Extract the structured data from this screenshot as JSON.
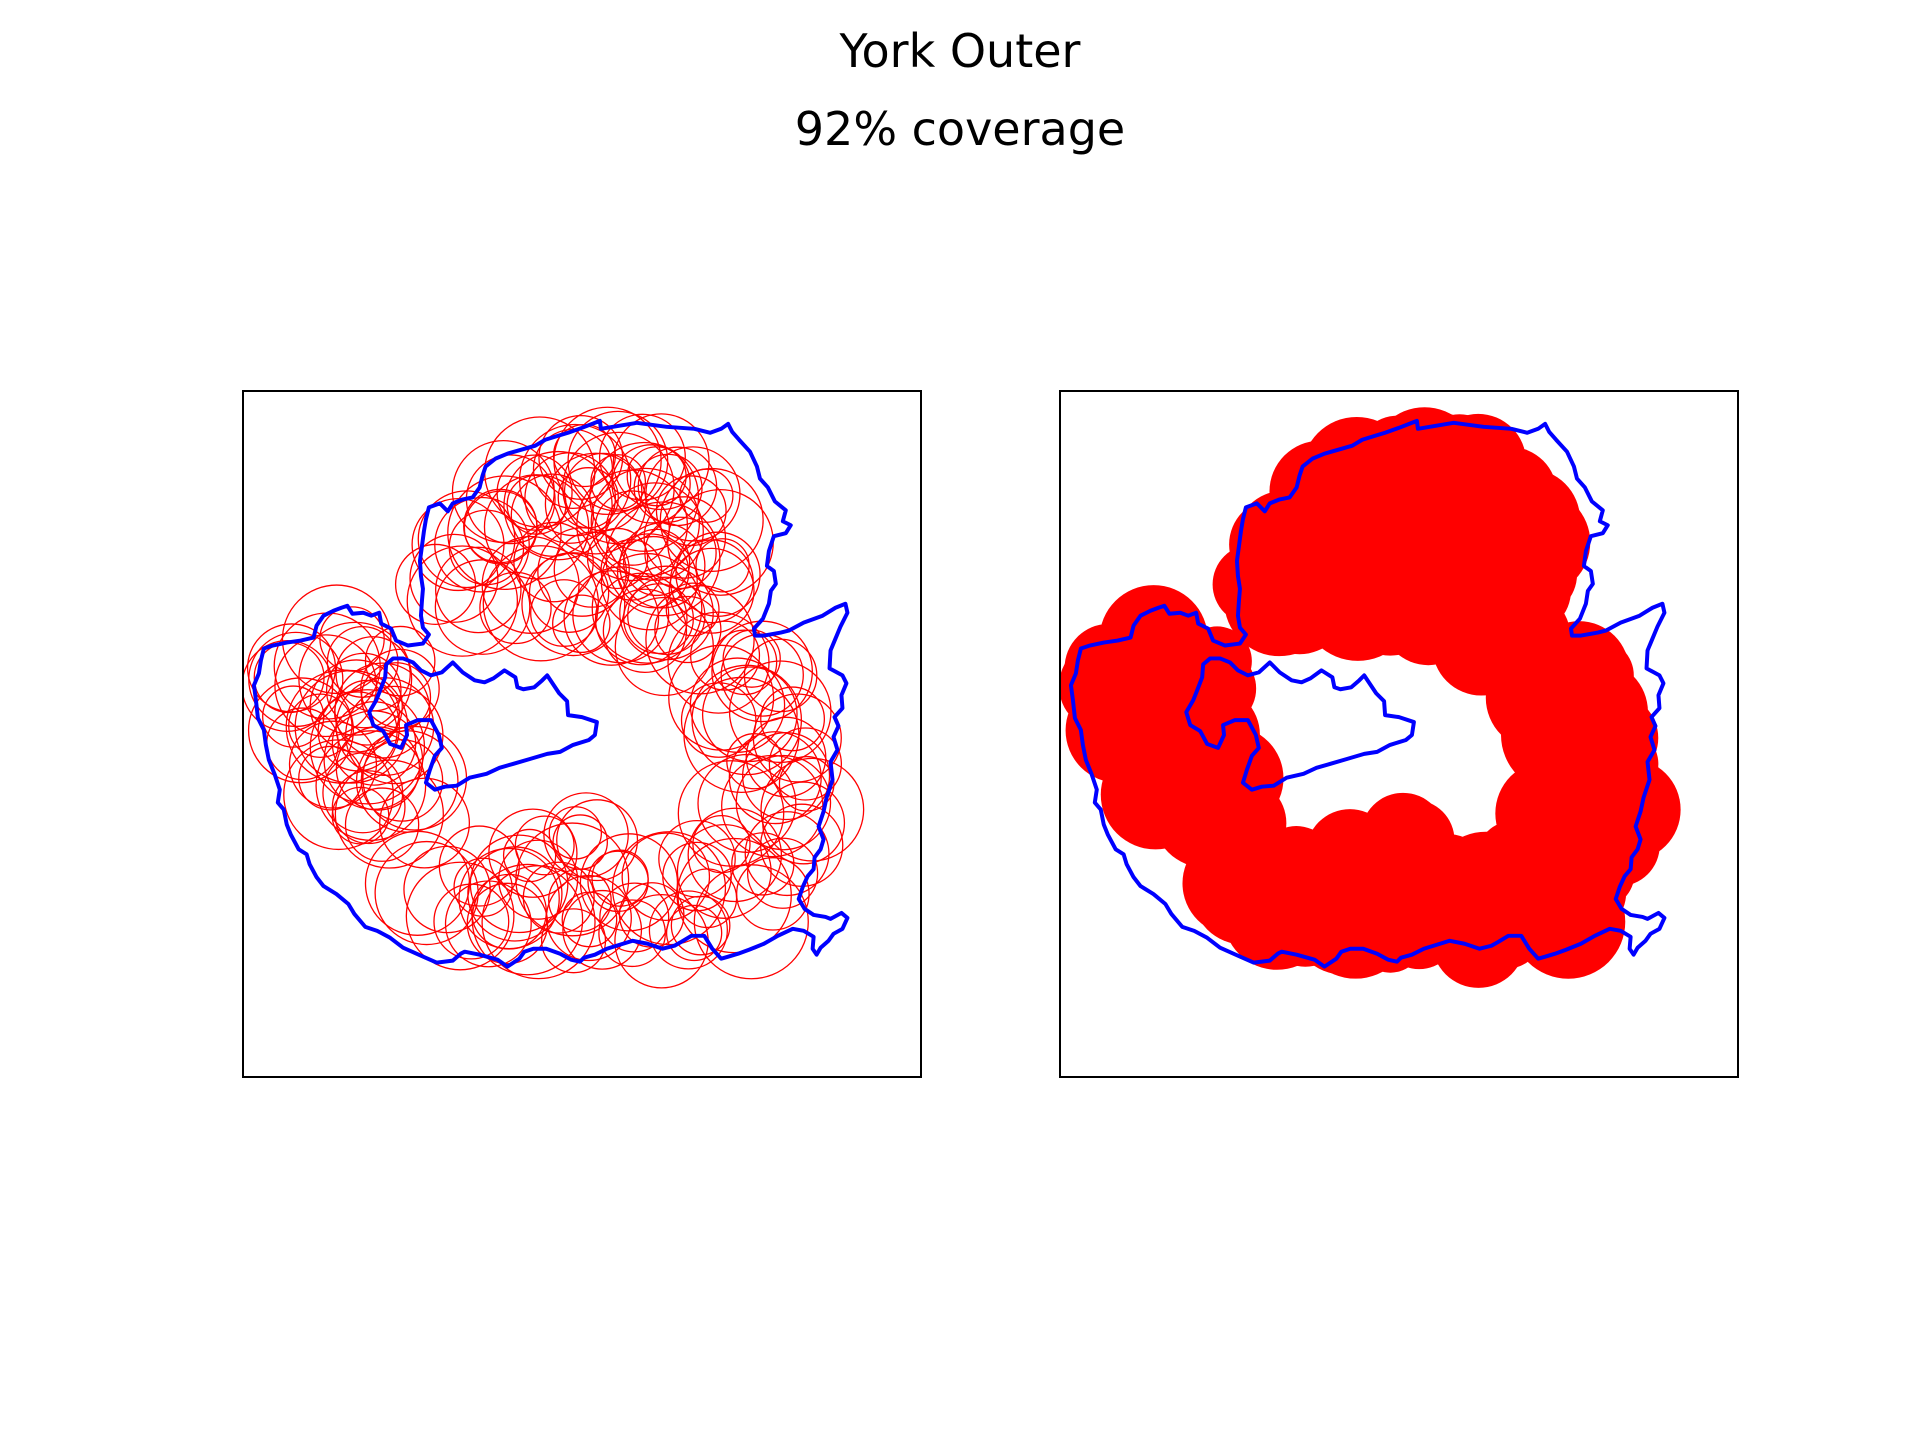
{
  "figure": {
    "title": "York Outer",
    "subtitle": "92% coverage"
  },
  "coverage": {
    "value_percent": 92
  },
  "colors": {
    "boundary": "#0000ff",
    "circles": "#ff0000",
    "frame": "#000000",
    "background": "#ffffff"
  },
  "panels": [
    {
      "name": "circle-outline-panel",
      "style": "outlined circles"
    },
    {
      "name": "filled-coverage-panel",
      "style": "filled circles"
    }
  ]
}
